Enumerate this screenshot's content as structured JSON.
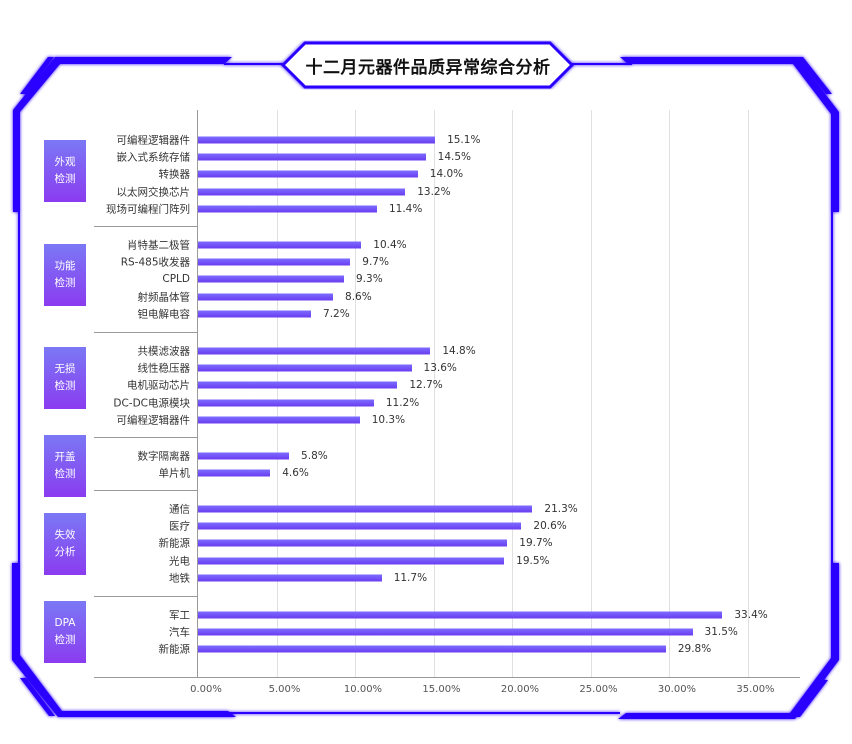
{
  "title": "十二月元器件品质异常综合分析",
  "colors": {
    "frame": "#2a00ff",
    "bar_top": "#7c6cff",
    "bar_bottom": "#6a3df0",
    "badge_top": "#7b78f5",
    "badge_bottom": "#8a3cf0"
  },
  "chart_data": {
    "type": "bar",
    "orientation": "horizontal",
    "title": "十二月元器件品质异常综合分析",
    "xlabel": "",
    "ylabel": "",
    "xlim": [
      0,
      37
    ],
    "grid": true,
    "x_ticks": [
      "0.00%",
      "5.00%",
      "10.00%",
      "15.00%",
      "20.00%",
      "25.00%",
      "30.00%",
      "35.00%"
    ],
    "groups": [
      {
        "name": "外观检测",
        "label_lines": [
          "外观",
          "检测"
        ],
        "items": [
          {
            "category": "可编程逻辑器件",
            "value": 15.1,
            "label": "15.1%"
          },
          {
            "category": "嵌入式系统存储",
            "value": 14.5,
            "label": "14.5%"
          },
          {
            "category": "转换器",
            "value": 14.0,
            "label": "14.0%"
          },
          {
            "category": "以太网交换芯片",
            "value": 13.2,
            "label": "13.2%"
          },
          {
            "category": "现场可编程门阵列",
            "value": 11.4,
            "label": "11.4%"
          }
        ]
      },
      {
        "name": "功能检测",
        "label_lines": [
          "功能",
          "检测"
        ],
        "items": [
          {
            "category": "肖特基二极管",
            "value": 10.4,
            "label": "10.4%"
          },
          {
            "category": "RS-485收发器",
            "value": 9.7,
            "label": "9.7%"
          },
          {
            "category": "CPLD",
            "value": 9.3,
            "label": "9.3%"
          },
          {
            "category": "射频晶体管",
            "value": 8.6,
            "label": "8.6%"
          },
          {
            "category": "钽电解电容",
            "value": 7.2,
            "label": "7.2%"
          }
        ]
      },
      {
        "name": "无损检测",
        "label_lines": [
          "无损",
          "检测"
        ],
        "items": [
          {
            "category": "共模滤波器",
            "value": 14.8,
            "label": "14.8%"
          },
          {
            "category": "线性稳压器",
            "value": 13.6,
            "label": "13.6%"
          },
          {
            "category": "电机驱动芯片",
            "value": 12.7,
            "label": "12.7%"
          },
          {
            "category": "DC-DC电源模块",
            "value": 11.2,
            "label": "11.2%"
          },
          {
            "category": "可编程逻辑器件",
            "value": 10.3,
            "label": "10.3%"
          }
        ]
      },
      {
        "name": "开盖检测",
        "label_lines": [
          "开盖",
          "检测"
        ],
        "items": [
          {
            "category": "数字隔离器",
            "value": 5.8,
            "label": "5.8%"
          },
          {
            "category": "单片机",
            "value": 4.6,
            "label": "4.6%"
          }
        ]
      },
      {
        "name": "失效分析",
        "label_lines": [
          "失效",
          "分析"
        ],
        "items": [
          {
            "category": "通信",
            "value": 21.3,
            "label": "21.3%"
          },
          {
            "category": "医疗",
            "value": 20.6,
            "label": "20.6%"
          },
          {
            "category": "新能源",
            "value": 19.7,
            "label": "19.7%"
          },
          {
            "category": "光电",
            "value": 19.5,
            "label": "19.5%"
          },
          {
            "category": "地铁",
            "value": 11.7,
            "label": "11.7%"
          }
        ]
      },
      {
        "name": "DPA检测",
        "label_lines": [
          "DPA",
          "检测"
        ],
        "items": [
          {
            "category": "军工",
            "value": 33.4,
            "label": "33.4%"
          },
          {
            "category": "汽车",
            "value": 31.5,
            "label": "31.5%"
          },
          {
            "category": "新能源",
            "value": 29.8,
            "label": "29.8%"
          }
        ]
      }
    ]
  }
}
